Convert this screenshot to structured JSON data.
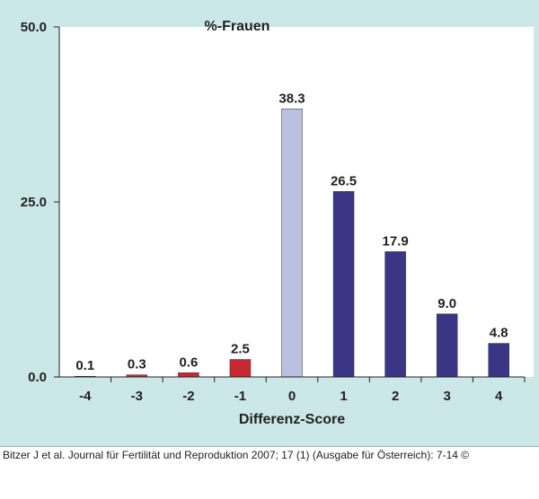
{
  "chart_data": {
    "type": "bar",
    "title": "%-Frauen",
    "xlabel": "Differenz-Score",
    "ylabel": "",
    "ylim": [
      0,
      50
    ],
    "yticks": [
      "0.0",
      "25.0",
      "50.0"
    ],
    "categories": [
      "-4",
      "-3",
      "-2",
      "-1",
      "0",
      "1",
      "2",
      "3",
      "4"
    ],
    "values": [
      0.1,
      0.3,
      0.6,
      2.5,
      38.3,
      26.5,
      17.9,
      9.0,
      4.8
    ],
    "value_labels": [
      "0.1",
      "0.3",
      "0.6",
      "2.5",
      "38.3",
      "26.5",
      "17.9",
      "9.0",
      "4.8"
    ],
    "bar_colors": [
      "#c82832",
      "#c82832",
      "#c82832",
      "#c82832",
      "#b9c0e0",
      "#3a3585",
      "#3a3585",
      "#3a3585",
      "#3a3585"
    ],
    "grid": false,
    "legend": false
  },
  "colors": {
    "background": "#cbe7e7",
    "plot_area": "#ffffff",
    "negative": "#c82832",
    "zero": "#b9c0e0",
    "positive": "#3a3585"
  },
  "caption": "Bitzer J et al. Journal für Fertilität und Reproduktion 2007; 17 (1) (Ausgabe für Österreich): 7-14 ©"
}
